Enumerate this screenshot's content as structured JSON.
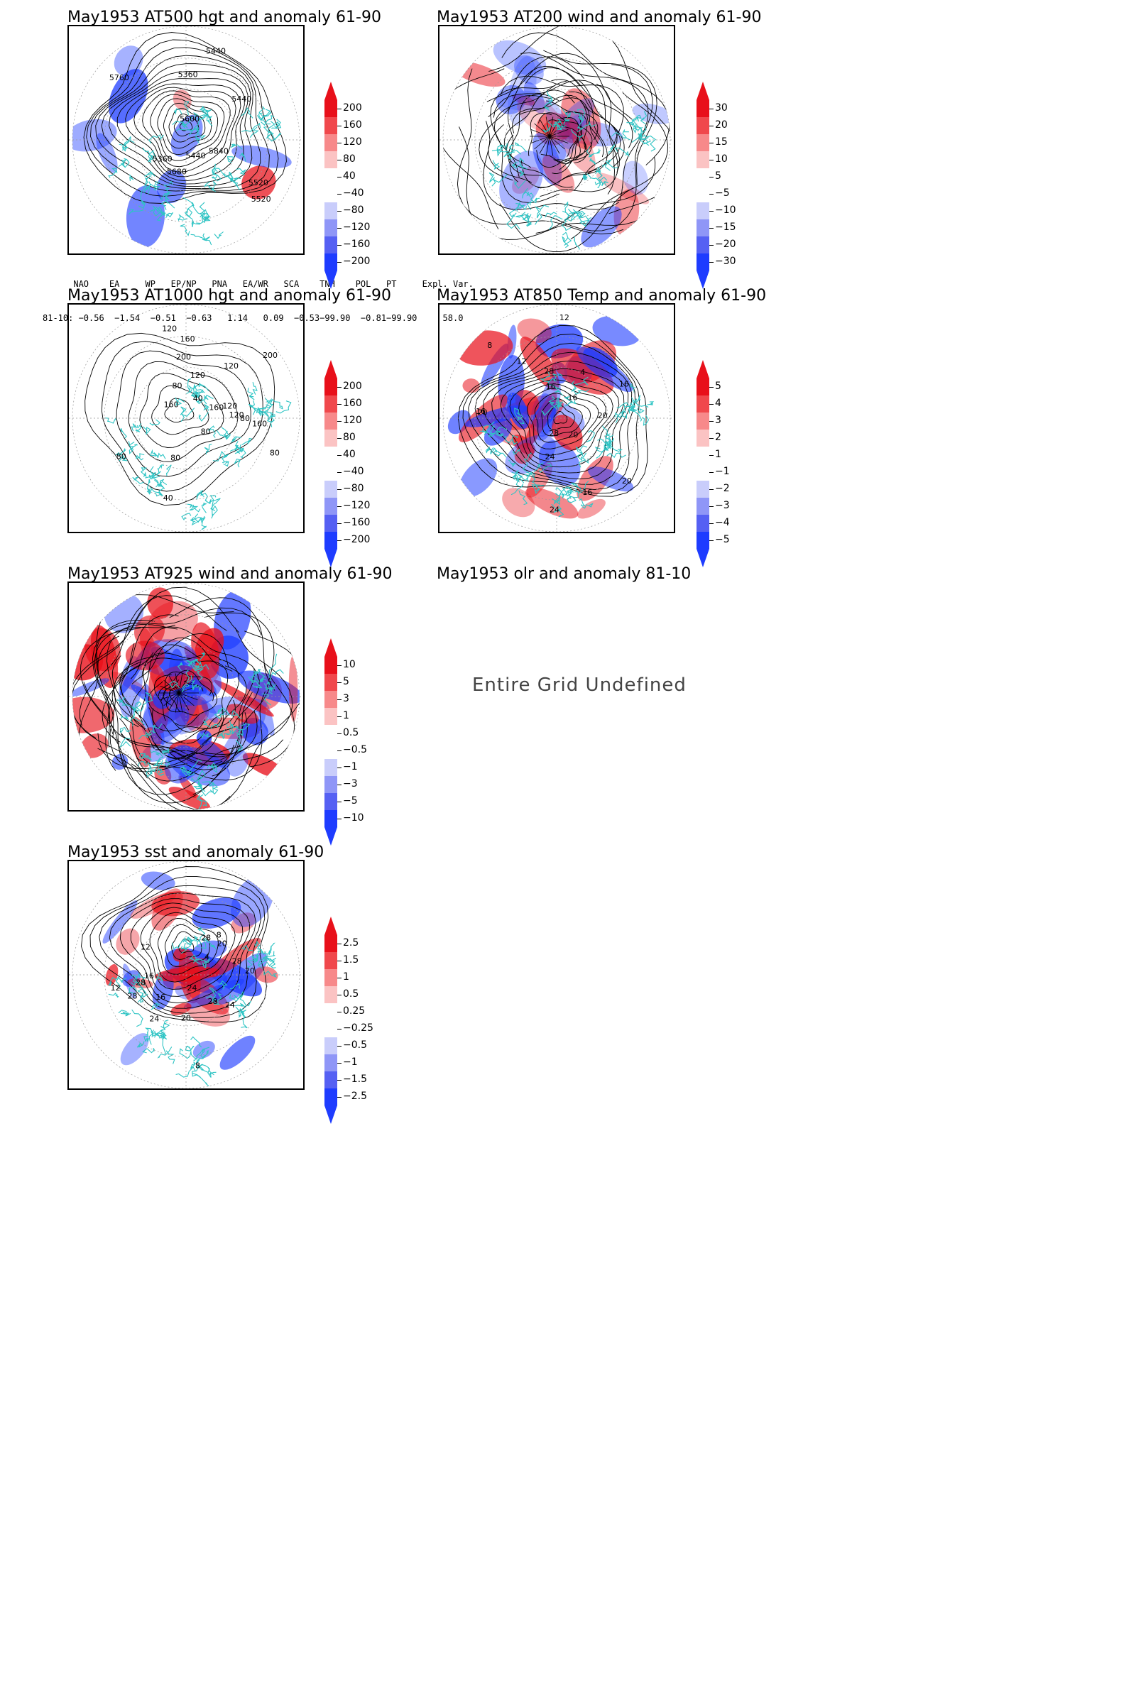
{
  "panels": [
    {
      "id": "p1",
      "title": "May1953 AT500 hgt and anomaly 61-90",
      "colorbar": [
        "200",
        "160",
        "120",
        "80",
        "40",
        "−40",
        "−80",
        "−120",
        "−160",
        "−200"
      ],
      "contour_labels": [
        "5360",
        "5440",
        "5520",
        "5440",
        "5360",
        "5440",
        "5520",
        "5600",
        "5680",
        "5760",
        "5840"
      ]
    },
    {
      "id": "p2",
      "title": "May1953 AT200 wind and anomaly 61-90",
      "colorbar": [
        "30",
        "20",
        "15",
        "10",
        "5",
        "−5",
        "−10",
        "−15",
        "−20",
        "−30"
      ]
    },
    {
      "id": "p3",
      "title": "May1953 AT1000 hgt and anomaly 61-90",
      "colorbar": [
        "200",
        "160",
        "120",
        "80",
        "40",
        "−40",
        "−80",
        "−120",
        "−160",
        "−200"
      ],
      "contour_labels": [
        "120",
        "160",
        "200",
        "80",
        "40",
        "120",
        "160",
        "200",
        "120",
        "80",
        "120",
        "160",
        "80",
        "80",
        "160",
        "120",
        "80",
        "40",
        "80"
      ]
    },
    {
      "id": "p4",
      "title": "May1953 AT850 Temp and anomaly 61-90",
      "colorbar": [
        "5",
        "4",
        "3",
        "2",
        "1",
        "−1",
        "−2",
        "−3",
        "−4",
        "−5"
      ],
      "contour_labels": [
        "16",
        "12",
        "16",
        "20",
        "20",
        "24",
        "28",
        "16",
        "8",
        "4",
        "12",
        "16",
        "20",
        "28",
        "24",
        "20",
        "16"
      ]
    },
    {
      "id": "p5",
      "title": "May1953 AT925 wind and anomaly 61-90",
      "colorbar": [
        "10",
        "5",
        "3",
        "1",
        "0.5",
        "−0.5",
        "−1",
        "−3",
        "−5",
        "−10"
      ]
    },
    {
      "id": "p6",
      "title": "May1953 olr and anomaly 81-10",
      "message": "Entire Grid Undefined"
    },
    {
      "id": "p7",
      "title": "May1953 sst and anomaly 61-90",
      "colorbar": [
        "2.5",
        "1.5",
        "1",
        "0.5",
        "0.25",
        "−0.25",
        "−0.5",
        "−1",
        "−1.5",
        "−2.5"
      ],
      "contour_labels": [
        "28",
        "28",
        "24",
        "20",
        "16",
        "12",
        "8",
        "4",
        "28",
        "24",
        "20",
        "16",
        "12",
        "8",
        "28",
        "24",
        "20",
        "28"
      ]
    }
  ],
  "indices": {
    "header": "      NAO    EA     WP   EP/NP   PNA   EA/WR   SCA    TNH    POL   PT     Expl. Var.",
    "values": "81-10: −0.56  −1.54  −0.51  −0.63   1.14   0.09  −0.53−99.90  −0.81−99.90     58.0"
  },
  "colors": {
    "coast": "#2ec4c4",
    "contour": "#000000",
    "pos": "#e8101a",
    "neg": "#1e3cff",
    "grid": "#999999"
  }
}
